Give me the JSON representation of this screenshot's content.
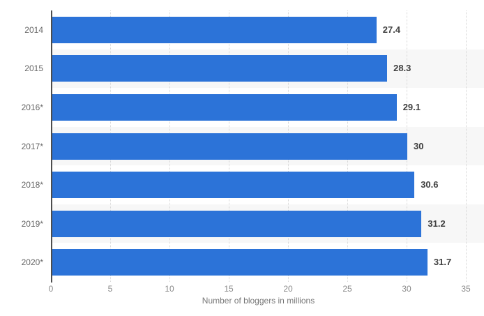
{
  "chart_data": {
    "type": "bar",
    "orientation": "horizontal",
    "title": "",
    "categories": [
      "2014",
      "2015",
      "2016*",
      "2017*",
      "2018*",
      "2019*",
      "2020*"
    ],
    "values": [
      27.4,
      28.3,
      29.1,
      30,
      30.6,
      31.2,
      31.7
    ],
    "value_labels": [
      "27.4",
      "28.3",
      "29.1",
      "30",
      "30.6",
      "31.2",
      "31.7"
    ],
    "xlabel": "Number of bloggers in millions",
    "ylabel": "",
    "xlim": [
      0,
      35
    ],
    "xticks": [
      0,
      5,
      10,
      15,
      20,
      25,
      30,
      35
    ],
    "grid": "vertical-dotted",
    "legend": "none",
    "alternating_row_bands": true,
    "banded_rows": [
      1,
      3,
      5
    ],
    "colors": {
      "bar": "#2c73d8",
      "row_band": "#f7f7f7",
      "gridline": "#d6d6d6",
      "axis_line": "#4d4d4d",
      "category_label": "#666666",
      "value_label": "#404040",
      "tick_label": "#8a8a8a",
      "axis_title": "#777777",
      "background": "#ffffff"
    }
  }
}
